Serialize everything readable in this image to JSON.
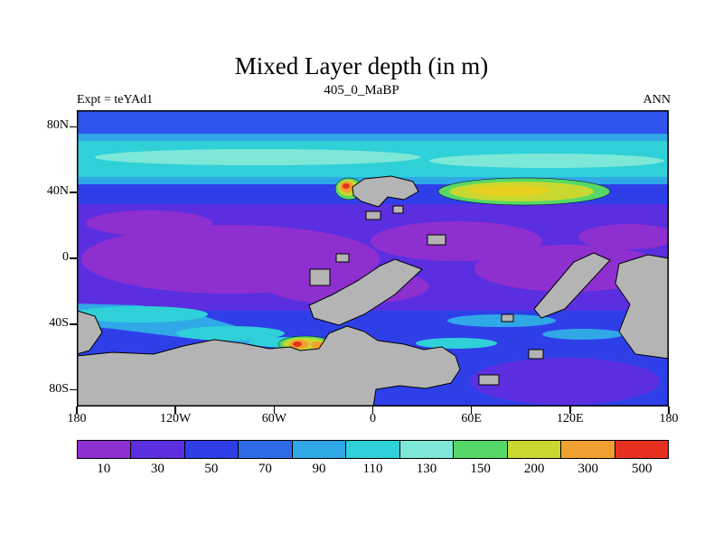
{
  "chart_data": {
    "type": "heatmap",
    "title": "Mixed Layer depth (in m)",
    "subtitle": "405_0_MaBP",
    "experiment_label": "Expt = teYAd1",
    "season_label": "ANN",
    "units": "m",
    "projection": "global latitude-longitude map (paleogeography)",
    "lat_ticks": [
      "80N",
      "40N",
      "0",
      "40S",
      "80S"
    ],
    "lon_ticks": [
      "180",
      "120W",
      "60W",
      "0",
      "60E",
      "120E",
      "180"
    ],
    "colorbar": {
      "levels": [
        "10",
        "30",
        "50",
        "70",
        "90",
        "110",
        "130",
        "150",
        "200",
        "300",
        "500"
      ],
      "colors": [
        "#8e2fd0",
        "#5b2fe0",
        "#2f3fe8",
        "#2f6ae8",
        "#30a8e8",
        "#30d0d8",
        "#7de8d8",
        "#55d868",
        "#c8d830",
        "#f0a030",
        "#e83020"
      ]
    },
    "land_color": "#b4b4b4",
    "ocean_summary": {
      "tropics": "mostly 10-30 m (purple/violet)",
      "northern_band_50_65N": "90-130 m cyan band across all longitudes",
      "southern_band_40_60S": "patchy 90-130 m cyan, strongest west of 60W",
      "maxima": [
        "200-500 m spot near 40N ~15W (orange/red core)",
        "150-200 m elongated yellow-green pool near 40N between 45E and 115E",
        "200-500 m spots near 55S ~45W (orange/red cores)"
      ]
    }
  }
}
